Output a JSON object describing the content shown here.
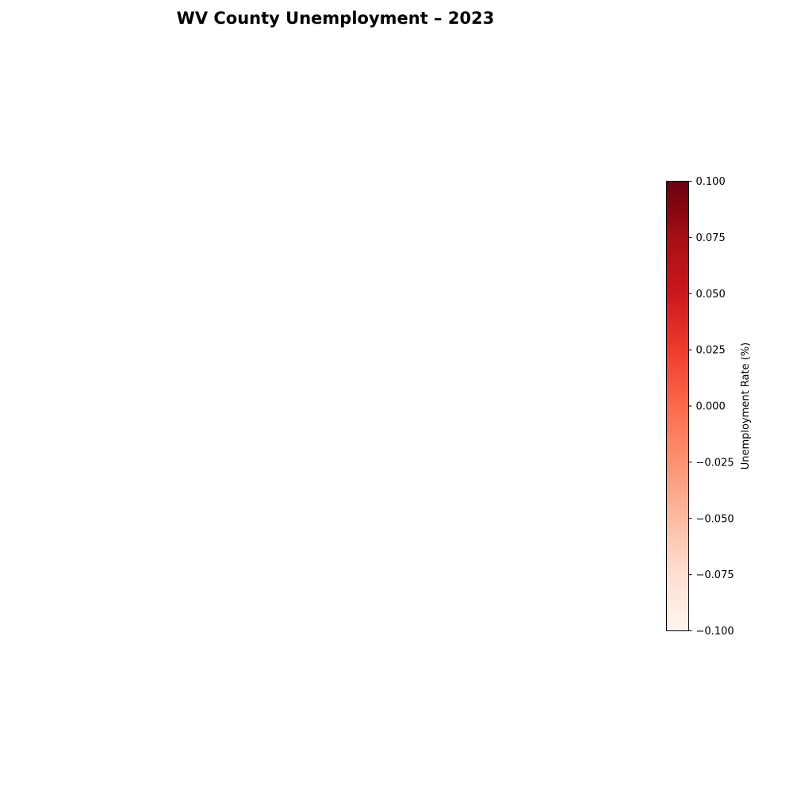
{
  "chart_data": {
    "type": "heatmap",
    "title": "WV County Unemployment – 2023",
    "regions": [],
    "colorbar": {
      "label": "Unemployment Rate (%)",
      "range": [
        -0.1,
        0.1
      ],
      "ticks": [
        0.1,
        0.075,
        0.05,
        0.025,
        0.0,
        -0.025,
        -0.05,
        -0.075,
        -0.1
      ],
      "tick_labels": [
        "0.100",
        "0.075",
        "0.050",
        "0.025",
        "0.000",
        "−0.025",
        "−0.050",
        "−0.075",
        "−0.100"
      ],
      "colormap": "Reds",
      "color_stops": [
        "#fff5f0",
        "#fee0d2",
        "#fcbba1",
        "#fc9272",
        "#fb6a4a",
        "#ef3b2c",
        "#cb181d",
        "#a50f15",
        "#67000d"
      ]
    }
  }
}
